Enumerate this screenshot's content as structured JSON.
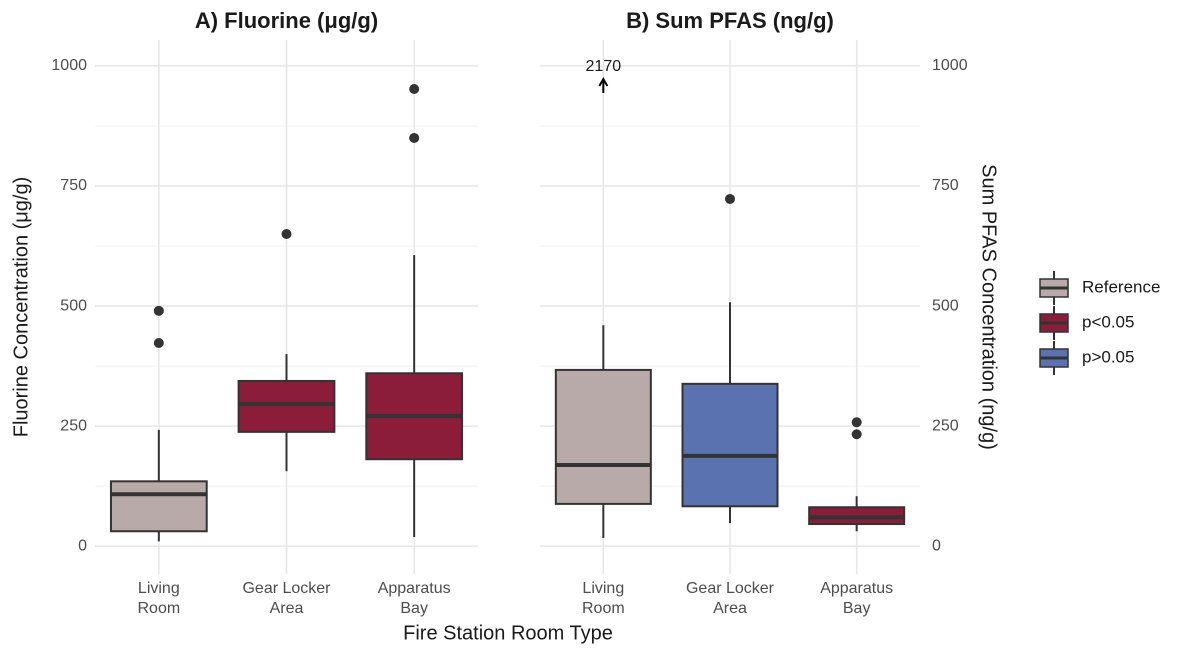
{
  "chart_data": [
    {
      "type": "box",
      "title": "A) Fluorine (μg/g)",
      "ylabel": "Fluorine Concentration (μg/g)",
      "yaxis_side": "left",
      "ylim": [
        -58,
        1054
      ],
      "yticks": [
        0,
        250,
        500,
        750,
        1000
      ],
      "grid": true,
      "categories": [
        "Living Room",
        "Gear Locker Area",
        "Apparatus Bay"
      ],
      "boxes": [
        {
          "group": "Reference",
          "low": 10,
          "q1": 31,
          "median": 108,
          "q3": 135,
          "high": 242,
          "outliers": [
            423,
            490
          ]
        },
        {
          "group": "p<0.05",
          "low": 156,
          "q1": 238,
          "median": 296,
          "q3": 344,
          "high": 400,
          "outliers": [
            650
          ]
        },
        {
          "group": "p<0.05",
          "low": 19,
          "q1": 181,
          "median": 271,
          "q3": 360,
          "high": 606,
          "outliers": [
            850,
            952
          ]
        }
      ]
    },
    {
      "type": "box",
      "title": "B) Sum PFAS (ng/g)",
      "ylabel": "Sum PFAS Concentration (ng/g)",
      "yaxis_side": "right",
      "ylim": [
        -58,
        1054
      ],
      "yticks": [
        0,
        250,
        500,
        750,
        1000
      ],
      "grid": true,
      "categories": [
        "Living Room",
        "Gear Locker Area",
        "Apparatus Bay"
      ],
      "boxes": [
        {
          "group": "Reference",
          "low": 17,
          "q1": 88,
          "median": 169,
          "q3": 367,
          "high": 460,
          "outliers": [
            2170
          ]
        },
        {
          "group": "p>0.05",
          "low": 48,
          "q1": 83,
          "median": 188,
          "q3": 338,
          "high": 508,
          "outliers": [
            723
          ]
        },
        {
          "group": "p<0.05",
          "low": 31,
          "q1": 46,
          "median": 60,
          "q3": 81,
          "high": 104,
          "outliers": [
            233,
            258
          ]
        }
      ]
    }
  ],
  "xlabel": "Fire Station Room Type",
  "legend": [
    {
      "name": "Reference",
      "color": "#b8aaa8"
    },
    {
      "name": "p<0.05",
      "color": "#8b1c3a"
    },
    {
      "name": "p>0.05",
      "color": "#5b72b0"
    }
  ]
}
